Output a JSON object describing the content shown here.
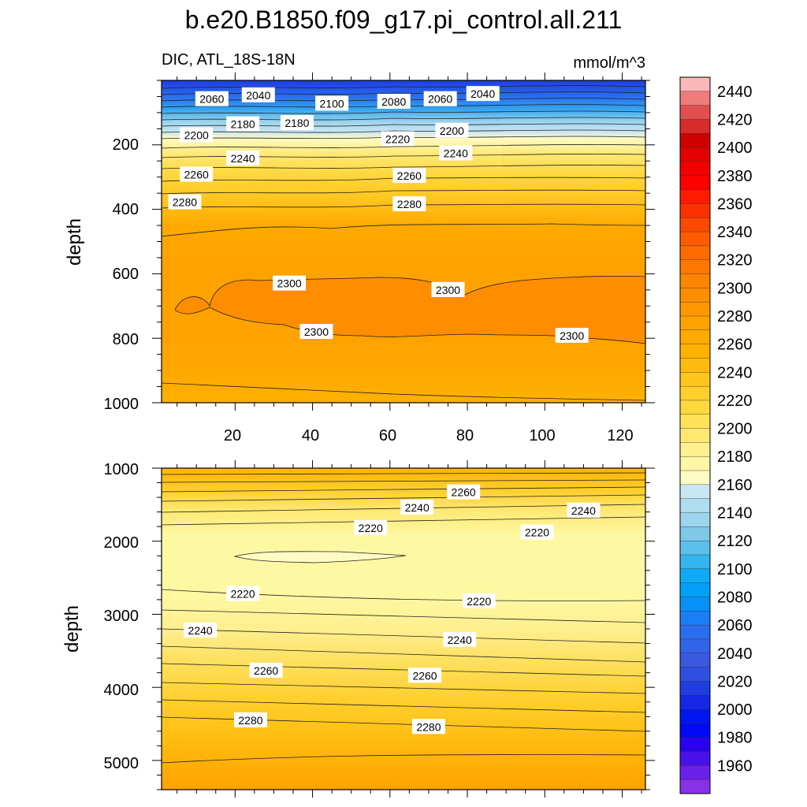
{
  "chart_data": {
    "type": "contour",
    "title": "b.e20.B1850.f09_g17.pi_control.all.211",
    "variable_label": "DIC, ATL_18S-18N",
    "units": "mmol/m^3",
    "ylabel": "depth",
    "colors": {
      "blue_dark": "#1f3de0",
      "light_blue": "#c9e6f3",
      "pale_yellow": "#fef9b0",
      "yellow": "#fde98a",
      "orange": "#ffb200",
      "dark_orange": "#ff8d00"
    },
    "upper_panel": {
      "ylim": [
        0,
        1000
      ],
      "y_reversed": true,
      "xlim": [
        1,
        126
      ],
      "x_ticks": [
        "20",
        "40",
        "60",
        "80",
        "100",
        "120"
      ],
      "y_ticks": [
        "200",
        "400",
        "600",
        "800",
        "1000"
      ],
      "contour_labels": [
        {
          "text": "2060",
          "x": 14,
          "y": 58
        },
        {
          "text": "2040",
          "x": 26,
          "y": 46
        },
        {
          "text": "2100",
          "x": 45,
          "y": 72
        },
        {
          "text": "2080",
          "x": 61,
          "y": 66
        },
        {
          "text": "2060",
          "x": 73,
          "y": 58
        },
        {
          "text": "2040",
          "x": 84,
          "y": 42
        },
        {
          "text": "2180",
          "x": 22,
          "y": 136
        },
        {
          "text": "2180",
          "x": 36,
          "y": 132
        },
        {
          "text": "2200",
          "x": 10,
          "y": 170
        },
        {
          "text": "2200",
          "x": 76,
          "y": 156
        },
        {
          "text": "2220",
          "x": 62,
          "y": 182
        },
        {
          "text": "2240",
          "x": 22,
          "y": 242
        },
        {
          "text": "2240",
          "x": 77,
          "y": 226
        },
        {
          "text": "2260",
          "x": 10,
          "y": 292
        },
        {
          "text": "2260",
          "x": 65,
          "y": 296
        },
        {
          "text": "2280",
          "x": 7,
          "y": 378
        },
        {
          "text": "2280",
          "x": 65,
          "y": 384
        },
        {
          "text": "2300",
          "x": 34,
          "y": 630
        },
        {
          "text": "2300",
          "x": 75,
          "y": 650
        },
        {
          "text": "2300",
          "x": 41,
          "y": 780
        },
        {
          "text": "2300",
          "x": 107,
          "y": 792
        }
      ]
    },
    "lower_panel": {
      "ylim": [
        1000,
        5400
      ],
      "y_reversed": true,
      "xlim": [
        1,
        126
      ],
      "y_ticks": [
        "1000",
        "2000",
        "3000",
        "4000",
        "5000"
      ],
      "contour_labels": [
        {
          "text": "2260",
          "x": 79,
          "y": 1330
        },
        {
          "text": "2240",
          "x": 67,
          "y": 1540
        },
        {
          "text": "2240",
          "x": 110,
          "y": 1580
        },
        {
          "text": "2220",
          "x": 55,
          "y": 1820
        },
        {
          "text": "2220",
          "x": 98,
          "y": 1880
        },
        {
          "text": "2220",
          "x": 22,
          "y": 2720
        },
        {
          "text": "2220",
          "x": 83,
          "y": 2820
        },
        {
          "text": "2240",
          "x": 11,
          "y": 3220
        },
        {
          "text": "2240",
          "x": 78,
          "y": 3350
        },
        {
          "text": "2260",
          "x": 28,
          "y": 3770
        },
        {
          "text": "2260",
          "x": 69,
          "y": 3840
        },
        {
          "text": "2280",
          "x": 24,
          "y": 4450
        },
        {
          "text": "2280",
          "x": 70,
          "y": 4540
        }
      ]
    },
    "colorbar": {
      "labels": [
        "2440",
        "2420",
        "2400",
        "2380",
        "2360",
        "2340",
        "2320",
        "2300",
        "2280",
        "2260",
        "2240",
        "2220",
        "2200",
        "2180",
        "2160",
        "2140",
        "2120",
        "2100",
        "2080",
        "2060",
        "2040",
        "2020",
        "2000",
        "1980",
        "1960"
      ],
      "levels_top_to_bottom": [
        2450,
        2440,
        2430,
        2420,
        2410,
        2400,
        2390,
        2380,
        2370,
        2360,
        2350,
        2340,
        2330,
        2320,
        2310,
        2300,
        2290,
        2280,
        2270,
        2260,
        2250,
        2240,
        2230,
        2220,
        2210,
        2200,
        2190,
        2180,
        2170,
        2160,
        2150,
        2140,
        2130,
        2120,
        2110,
        2100,
        2090,
        2080,
        2070,
        2060,
        2050,
        2040,
        2030,
        2020,
        2010,
        2000,
        1990,
        1980,
        1970,
        1960,
        1950
      ],
      "colors_top_to_bottom": [
        "#fcb8b8",
        "#f07b7b",
        "#e24f4f",
        "#d82b2b",
        "#d00000",
        "#e40000",
        "#f20000",
        "#ff0000",
        "#ff1c00",
        "#ff3000",
        "#ff4800",
        "#ff5c00",
        "#ff6a00",
        "#ff7800",
        "#ff8400",
        "#ff8d00",
        "#ff9800",
        "#ffa200",
        "#ffaa00",
        "#ffb200",
        "#ffba10",
        "#ffc51e",
        "#ffcf2e",
        "#ffd83e",
        "#ffe25a",
        "#fee872",
        "#feef90",
        "#fef6a4",
        "#fffbc2",
        "#c9e6f3",
        "#b0dcef",
        "#9fd5ec",
        "#7fc8e8",
        "#5cc0ec",
        "#33b6f0",
        "#10a9f5",
        "#00a0f8",
        "#0890f8",
        "#1a7ff5",
        "#2a6df0",
        "#3263e8",
        "#3a58e0",
        "#2f4fe2",
        "#1f3de0",
        "#1428e6",
        "#0015f0",
        "#0008f6",
        "#2a00f0",
        "#4a10ea",
        "#6a20e8",
        "#8a30e8"
      ]
    }
  }
}
